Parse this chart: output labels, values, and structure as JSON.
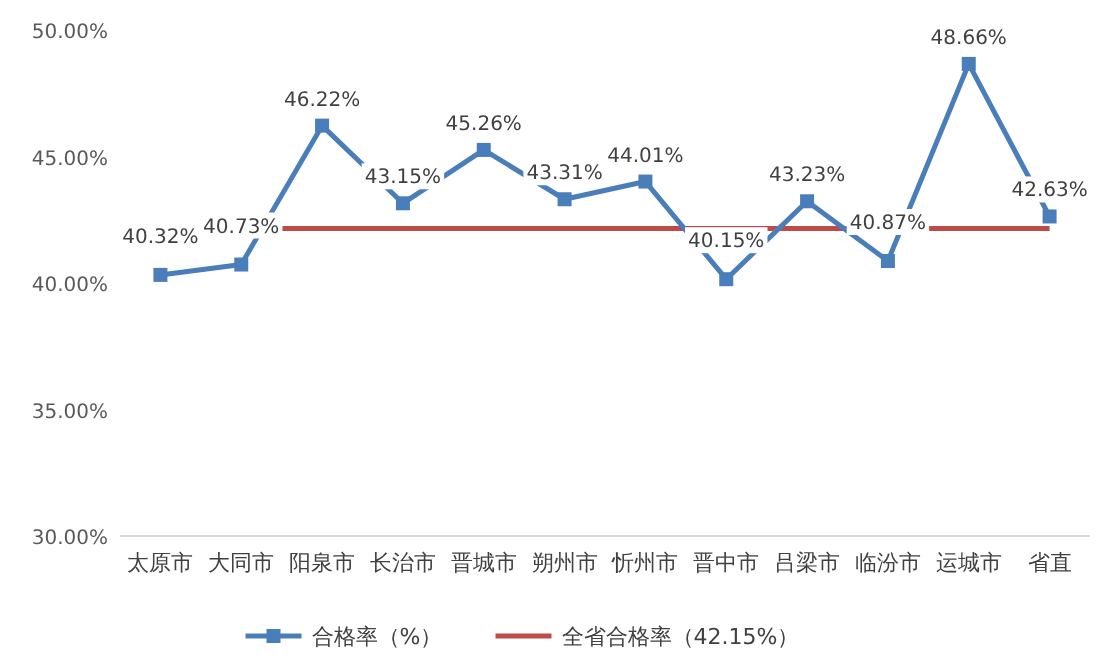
{
  "chart_data": {
    "type": "line",
    "categories": [
      "太原市",
      "大同市",
      "阳泉市",
      "长治市",
      "晋城市",
      "朔州市",
      "忻州市",
      "晋中市",
      "吕梁市",
      "临汾市",
      "运城市",
      "省直"
    ],
    "series": [
      {
        "name": "合格率（%）",
        "color": "#4a7ebb",
        "values": [
          40.32,
          40.73,
          46.22,
          43.15,
          45.26,
          43.31,
          44.01,
          40.15,
          43.23,
          40.87,
          48.66,
          42.63
        ],
        "value_labels": [
          "40.32%",
          "40.73%",
          "46.22%",
          "43.15%",
          "45.26%",
          "43.31%",
          "44.01%",
          "40.15%",
          "43.23%",
          "40.87%",
          "48.66%",
          "42.63%"
        ]
      }
    ],
    "ref_lines": [
      {
        "axis": "y",
        "value": 42.15,
        "label": "全省合格率（42.15%）",
        "color": "#be4b48"
      }
    ],
    "ylim": [
      30,
      50
    ],
    "yticks": [
      {
        "value": 30,
        "label": "30.00%"
      },
      {
        "value": 35,
        "label": "35.00%"
      },
      {
        "value": 40,
        "label": "40.00%"
      },
      {
        "value": 45,
        "label": "45.00%"
      },
      {
        "value": 50,
        "label": "50.00%"
      }
    ],
    "marker": "square",
    "line_style": "solid",
    "legend": "bottom"
  }
}
